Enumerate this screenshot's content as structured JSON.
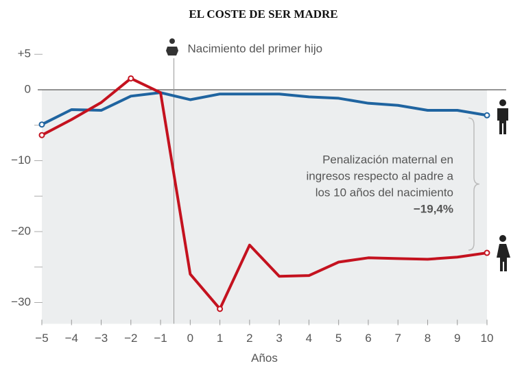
{
  "chart_data": {
    "type": "line",
    "title": "EL COSTE DE SER MADRE",
    "x_label": "Años",
    "x": [
      -5,
      -4,
      -3,
      -2,
      -1,
      0,
      1,
      2,
      3,
      4,
      5,
      6,
      7,
      8,
      9,
      10
    ],
    "series": [
      {
        "color": "#1f64a0",
        "values": [
          -4.9,
          -2.8,
          -2.9,
          -0.9,
          -0.4,
          -1.4,
          -0.6,
          -0.6,
          -0.6,
          -1.0,
          -1.2,
          -1.9,
          -2.2,
          -2.9,
          -2.9,
          -3.6
        ],
        "marker_indices": [
          0,
          15
        ]
      },
      {
        "color": "#c4121f",
        "values": [
          -6.4,
          -4.2,
          -1.8,
          1.6,
          -0.4,
          -26.0,
          -30.9,
          -21.9,
          -26.3,
          -26.2,
          -24.3,
          -23.7,
          -23.8,
          -23.9,
          -23.6,
          -23.0
        ],
        "marker_indices": [
          0,
          3,
          6,
          15
        ]
      }
    ],
    "xlim": [
      -5,
      10
    ],
    "xticks": [
      {
        "value": -5,
        "label": "−5"
      },
      {
        "value": -4,
        "label": "−4"
      },
      {
        "value": -3,
        "label": "−3"
      },
      {
        "value": -2,
        "label": "−2"
      },
      {
        "value": -1,
        "label": "−1"
      },
      0,
      1,
      2,
      3,
      4,
      5,
      6,
      7,
      8,
      9,
      10
    ],
    "ylim": [
      -33,
      7
    ],
    "yticks": [
      {
        "value": 5,
        "label": "+5"
      },
      0,
      {
        "value": -10,
        "label": "−10"
      },
      {
        "value": -20,
        "label": "−20"
      },
      {
        "value": -30,
        "label": "−30"
      }
    ],
    "minor_yticks": [
      -5,
      -15,
      -25
    ],
    "birth_annotation": {
      "text": "Nacimiento del primer hijo",
      "x": -0.55
    },
    "penalty_annotation": {
      "lines": [
        "Penalización maternal en",
        "ingresos respecto al padre a",
        "los 10 años del nacimiento"
      ],
      "value": -19.4,
      "value_label": "−19,4%"
    }
  }
}
